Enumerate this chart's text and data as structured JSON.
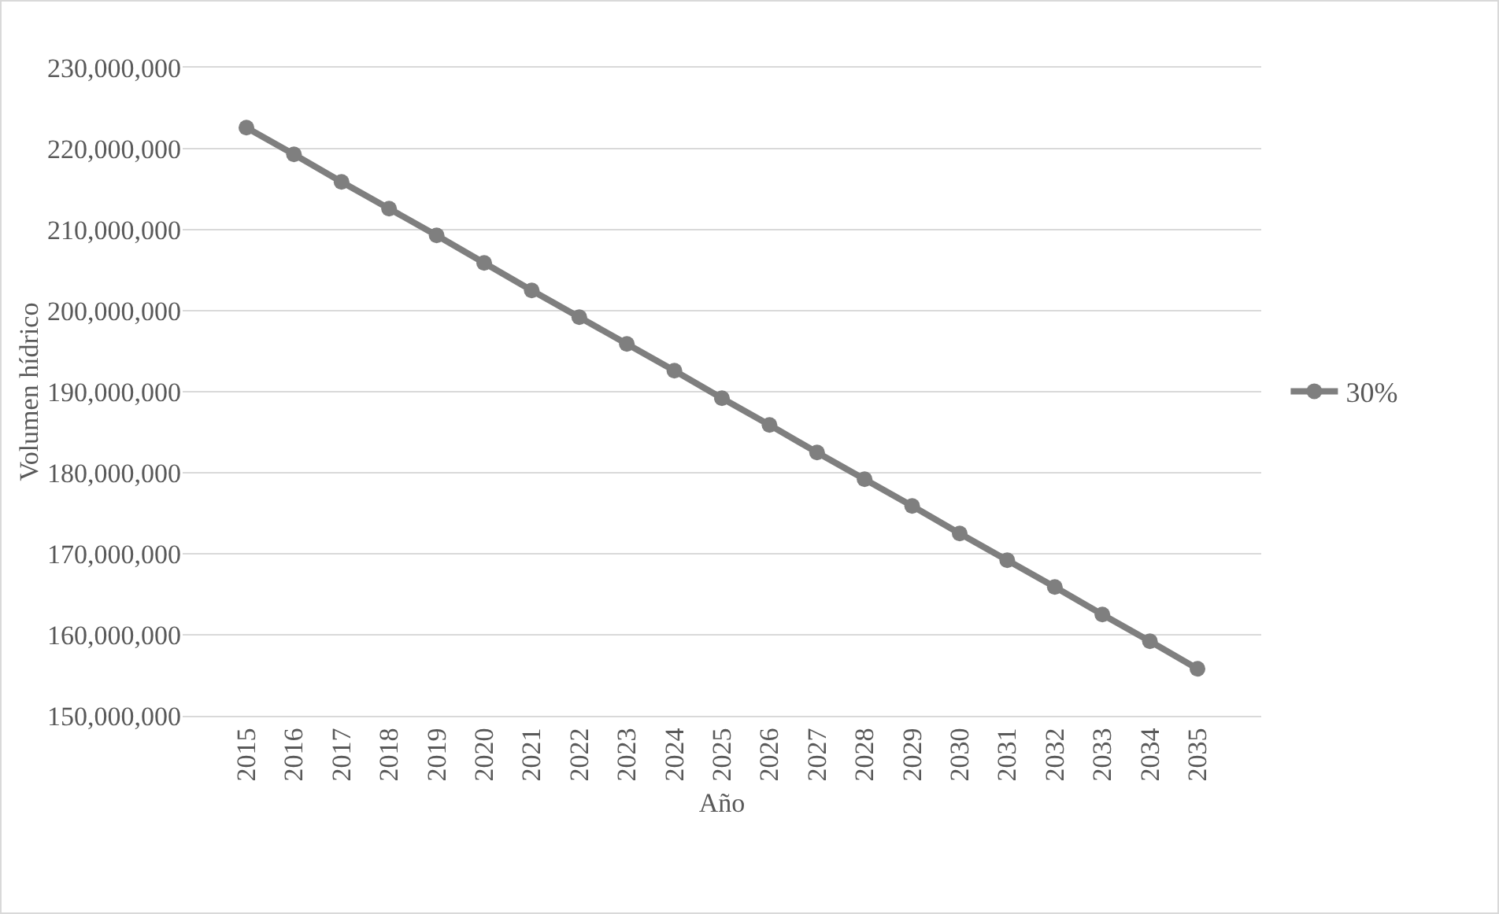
{
  "chart_data": {
    "type": "line",
    "xlabel": "Año",
    "ylabel": "Volumen hídrico",
    "categories": [
      "2015",
      "2016",
      "2017",
      "2018",
      "2019",
      "2020",
      "2021",
      "2022",
      "2023",
      "2024",
      "2025",
      "2026",
      "2027",
      "2028",
      "2029",
      "2030",
      "2031",
      "2032",
      "2033",
      "2034",
      "2035"
    ],
    "series": [
      {
        "name": "30%",
        "color": "#7f7f7f",
        "values": [
          222600000,
          219300000,
          215900000,
          212600000,
          209300000,
          205900000,
          202500000,
          199200000,
          195900000,
          192600000,
          189200000,
          185900000,
          182500000,
          179200000,
          175900000,
          172500000,
          169200000,
          165900000,
          162500000,
          159200000,
          155800000
        ]
      }
    ],
    "ylim": [
      150000000,
      230000000
    ],
    "yticks": [
      {
        "value": 150000000,
        "label": "150,000,000"
      },
      {
        "value": 160000000,
        "label": "160,000,000"
      },
      {
        "value": 170000000,
        "label": "170,000,000"
      },
      {
        "value": 180000000,
        "label": "180,000,000"
      },
      {
        "value": 190000000,
        "label": "190,000,000"
      },
      {
        "value": 200000000,
        "label": "200,000,000"
      },
      {
        "value": 210000000,
        "label": "210,000,000"
      },
      {
        "value": 220000000,
        "label": "220,000,000"
      },
      {
        "value": 230000000,
        "label": "230,000,000"
      }
    ],
    "grid": "y",
    "legend": "right",
    "marker": "circle",
    "line_style": "solid"
  }
}
